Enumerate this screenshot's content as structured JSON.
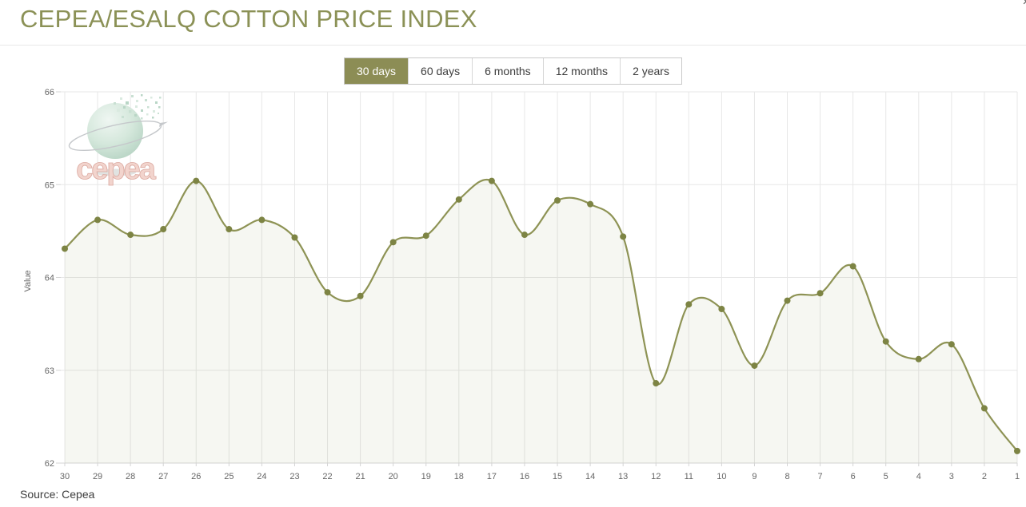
{
  "header": {
    "title": "CEPEA/ESALQ COTTON PRICE INDEX"
  },
  "icons": {
    "close": "×"
  },
  "tabs": [
    {
      "label": "30 days",
      "selected": true
    },
    {
      "label": "60 days",
      "selected": false
    },
    {
      "label": "6 months",
      "selected": false
    },
    {
      "label": "12 months",
      "selected": false
    },
    {
      "label": "2 years",
      "selected": false
    }
  ],
  "watermark": {
    "text": "cepea"
  },
  "footer": {
    "source": "Source: Cepea"
  },
  "chart_data": {
    "type": "area",
    "title": "CEPEA/ESALQ COTTON PRICE INDEX",
    "xlabel": "",
    "ylabel": "Value",
    "x_categories": [
      30,
      29,
      28,
      27,
      26,
      25,
      24,
      23,
      22,
      21,
      20,
      19,
      18,
      17,
      16,
      15,
      14,
      13,
      12,
      11,
      10,
      9,
      8,
      7,
      6,
      5,
      4,
      3,
      2,
      1
    ],
    "values": [
      64.31,
      64.62,
      64.46,
      64.52,
      65.04,
      64.52,
      64.62,
      64.43,
      63.84,
      63.8,
      64.38,
      64.45,
      64.84,
      65.04,
      64.46,
      64.83,
      64.79,
      64.44,
      62.86,
      63.71,
      63.66,
      63.05,
      63.75,
      63.83,
      64.12,
      63.31,
      63.12,
      63.28,
      62.59,
      62.13
    ],
    "ylim": [
      62,
      66
    ],
    "yticks": [
      62,
      63,
      64,
      65,
      66
    ],
    "grid": true,
    "legend": false,
    "colors": {
      "line": "#8e9355",
      "marker": "#7d8444",
      "fill": "#8e9355",
      "fill_opacity": 0.08,
      "grid": "#e7e7e7",
      "axis": "#d4d4d4",
      "tick_label": "#666666",
      "title": "#8b9156",
      "tab_selected_bg": "#8c8d55"
    }
  }
}
